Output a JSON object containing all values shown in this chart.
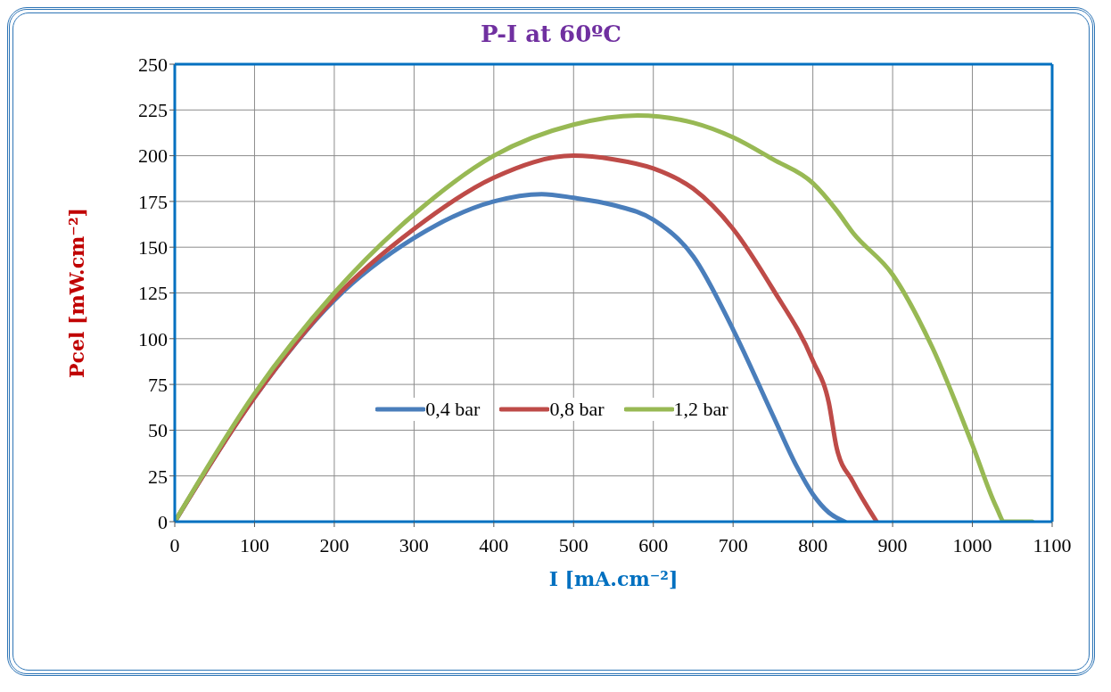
{
  "chart_data": {
    "type": "line",
    "title": "P-I at 60ºC",
    "xlabel": "I [mA.cm⁻²]",
    "ylabel": "Pcel [mW.cm⁻²]",
    "xlim": [
      0,
      1100
    ],
    "xticks": [
      0,
      100,
      200,
      300,
      400,
      500,
      600,
      700,
      800,
      900,
      1000,
      1100
    ],
    "ylim": [
      0,
      250
    ],
    "yticks": [
      0,
      25,
      50,
      75,
      100,
      125,
      150,
      175,
      200,
      225,
      250
    ],
    "grid": true,
    "legend": "center",
    "marker": "none",
    "line_style": "solid",
    "series": [
      {
        "name": "0,4 bar",
        "color": "#4a7ebb",
        "x": [
          0,
          100,
          200,
          300,
          400,
          460,
          500,
          550,
          600,
          650,
          700,
          750,
          780,
          800,
          820,
          840
        ],
        "values": [
          0,
          68,
          121,
          155,
          175,
          179,
          177,
          173,
          165,
          145,
          105,
          58,
          30,
          15,
          5,
          0
        ]
      },
      {
        "name": "0,8 bar",
        "color": "#be4b48",
        "x": [
          0,
          100,
          200,
          300,
          400,
          500,
          550,
          600,
          650,
          700,
          750,
          800,
          820,
          830,
          850,
          880
        ],
        "values": [
          0,
          68,
          122,
          160,
          188,
          200,
          198,
          193,
          182,
          160,
          127,
          88,
          65,
          40,
          22,
          0
        ]
      },
      {
        "name": "1,2 bar",
        "color": "#98b954",
        "x": [
          0,
          100,
          200,
          300,
          400,
          500,
          580,
          650,
          700,
          750,
          800,
          830,
          850,
          900,
          950,
          1000,
          1030,
          1040,
          1075
        ],
        "values": [
          0,
          70,
          125,
          168,
          200,
          217,
          222,
          218,
          210,
          198,
          185,
          170,
          158,
          135,
          95,
          42,
          8,
          0,
          0
        ]
      }
    ]
  }
}
